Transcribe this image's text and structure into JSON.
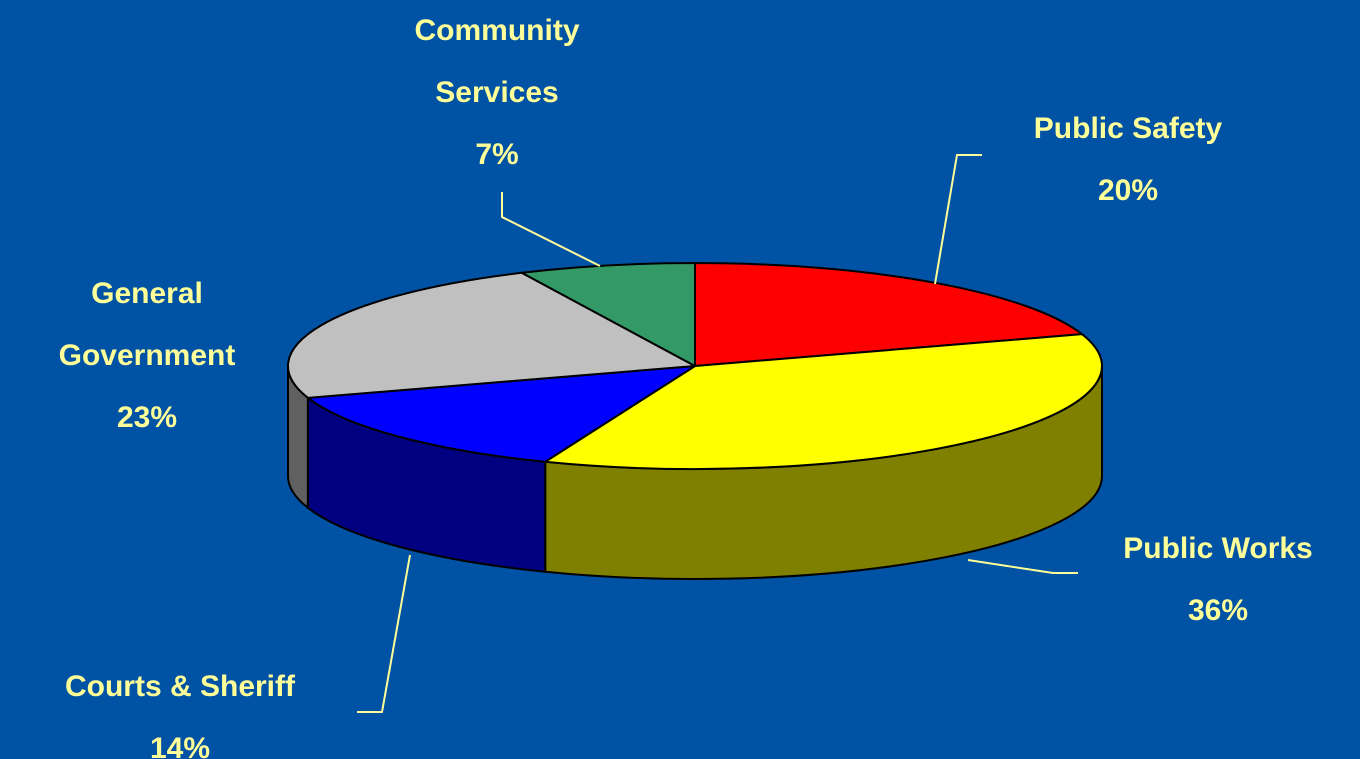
{
  "colors": {
    "background": "#0052a5",
    "label": "#ffff99"
  },
  "chart_data": {
    "type": "pie",
    "title": "",
    "three_d": true,
    "series": [
      {
        "categories": [
          "Public Safety",
          "Public Works",
          "Courts & Sheriff",
          "General Government",
          "Community Services"
        ],
        "values": [
          20,
          36,
          14,
          23,
          7
        ],
        "unit": "%"
      }
    ],
    "slices": [
      {
        "label_lines": [
          "Public Safety"
        ],
        "value_text": "20%",
        "value": 20,
        "color": "#ff0000",
        "side_color": "#800000"
      },
      {
        "label_lines": [
          "Public Works"
        ],
        "value_text": "36%",
        "value": 36,
        "color": "#ffff00",
        "side_color": "#808000"
      },
      {
        "label_lines": [
          "Courts & Sheriff"
        ],
        "value_text": "14%",
        "value": 14,
        "color": "#0000ff",
        "side_color": "#000080"
      },
      {
        "label_lines": [
          "General",
          "Government"
        ],
        "value_text": "23%",
        "value": 23,
        "color": "#c0c0c0",
        "side_color": "#606060"
      },
      {
        "label_lines": [
          "Community",
          "Services"
        ],
        "value_text": "7%",
        "value": 7,
        "color": "#339966",
        "side_color": "#1a4d33"
      }
    ]
  }
}
